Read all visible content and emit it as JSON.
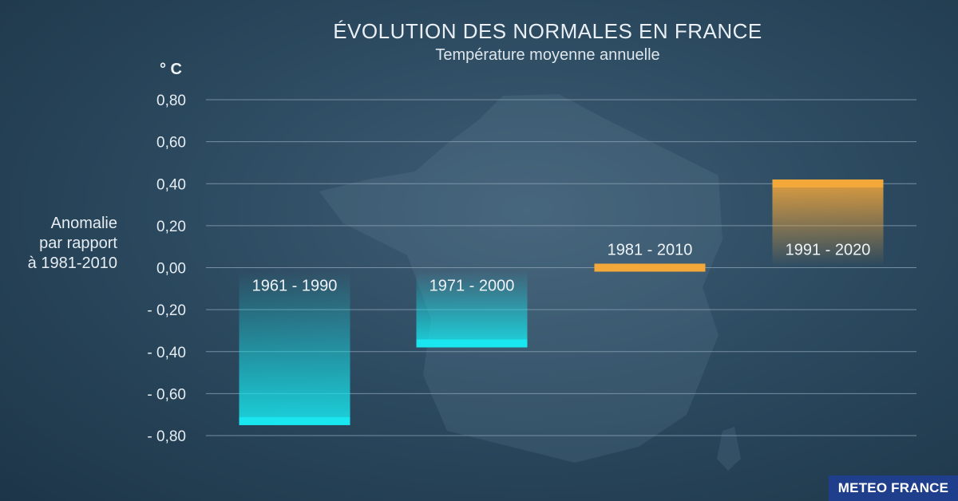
{
  "chart_data": {
    "type": "bar",
    "title": "ÉVOLUTION DES NORMALES EN FRANCE",
    "subtitle": "Température moyenne annuelle",
    "unit": "° C",
    "ylabel": [
      "Anomalie",
      "par rapport",
      "à 1981-2010"
    ],
    "ylim": [
      -0.8,
      0.8
    ],
    "ytick_values": [
      0.8,
      0.6,
      0.4,
      0.2,
      0.0,
      -0.2,
      -0.4,
      -0.6,
      -0.8
    ],
    "ytick_labels": [
      "0,80",
      "0,60",
      "0,40",
      "0,20",
      "0,00",
      "- 0,20",
      "- 0,40",
      "- 0,60",
      "- 0,80"
    ],
    "categories": [
      "1961 - 1990",
      "1971 - 2000",
      "1981 - 2010",
      "1991 - 2020"
    ],
    "values": [
      -0.75,
      -0.38,
      0.0,
      0.42
    ],
    "grid": true,
    "colors": {
      "negative": "#19e6ee",
      "positive": "#f5a83a",
      "grid": "#8ea6b8",
      "tick_text": "#e6edf2",
      "bar_label": "#eef3f7"
    }
  },
  "brand": {
    "label": "METEO FRANCE",
    "color": "#1f3f8c"
  }
}
